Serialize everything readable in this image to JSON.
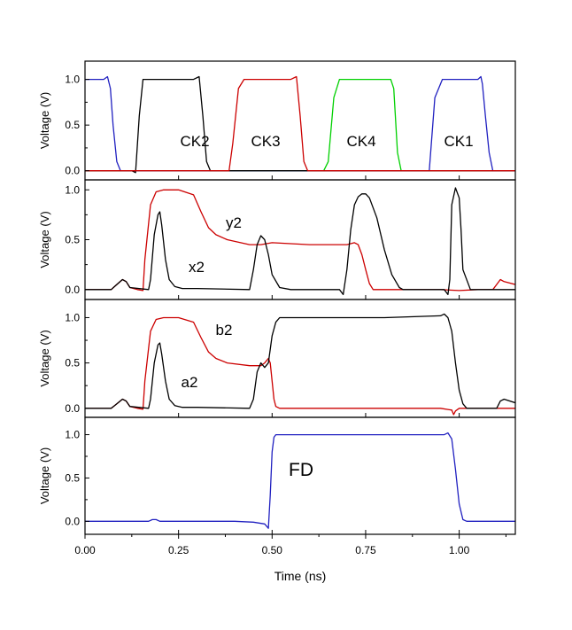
{
  "chart_data": {
    "type": "line",
    "xlabel": "Time (ns)",
    "x_ticks": [
      "0.00",
      "0.25",
      "0.50",
      "0.75",
      "1.00"
    ],
    "xlim": [
      0.0,
      1.15
    ],
    "grid": false,
    "panels": [
      {
        "ylabel": "Voltage (V)",
        "ylim": [
          -0.1,
          1.2
        ],
        "y_ticks": [
          "0.0",
          "0.5",
          "1.0"
        ],
        "annotations": [
          "CK2",
          "CK3",
          "CK4",
          "CK1"
        ],
        "series": [
          {
            "color": "#00d000",
            "x": [
              0.0,
              0.638,
              0.65,
              0.665,
              0.68,
              0.817,
              0.825,
              0.835,
              0.845,
              1.15
            ],
            "y": [
              0.0,
              0.0,
              0.1,
              0.8,
              1.0,
              1.0,
              0.9,
              0.2,
              0.0,
              0.0
            ]
          },
          {
            "color": "#2020c0",
            "x": [
              0.0,
              0.05,
              0.06,
              0.068,
              0.075,
              0.085,
              0.095,
              0.92,
              0.935,
              0.955,
              1.05,
              1.058,
              1.062,
              1.07,
              1.08,
              1.09,
              1.15
            ],
            "y": [
              1.0,
              1.0,
              1.03,
              0.9,
              0.5,
              0.1,
              0.0,
              0.0,
              0.8,
              1.0,
              1.0,
              1.03,
              0.95,
              0.6,
              0.2,
              0.0,
              0.0
            ]
          },
          {
            "color": "#000000",
            "x": [
              0.0,
              0.125,
              0.135,
              0.145,
              0.155,
              0.29,
              0.305,
              0.315,
              0.325,
              0.335,
              1.15
            ],
            "y": [
              0.0,
              0.0,
              -0.02,
              0.6,
              1.0,
              1.0,
              1.03,
              0.6,
              0.1,
              0.0,
              0.0
            ]
          },
          {
            "color": "#cc0000",
            "x": [
              0.0,
              0.385,
              0.395,
              0.41,
              0.425,
              0.55,
              0.565,
              0.575,
              0.585,
              0.595,
              1.15
            ],
            "y": [
              0.0,
              0.0,
              0.3,
              0.9,
              1.0,
              1.0,
              1.03,
              0.6,
              0.1,
              0.0,
              0.0
            ]
          }
        ]
      },
      {
        "ylabel": "Voltage (V)",
        "ylim": [
          -0.1,
          1.1
        ],
        "y_ticks": [
          "0.0",
          "0.5",
          "1.0"
        ],
        "annotations": [
          "y2",
          "x2"
        ],
        "series": [
          {
            "name": "y2",
            "color": "#cc0000",
            "x": [
              0.0,
              0.07,
              0.085,
              0.1,
              0.11,
              0.12,
              0.14,
              0.155,
              0.16,
              0.175,
              0.19,
              0.21,
              0.25,
              0.29,
              0.31,
              0.33,
              0.35,
              0.38,
              0.44,
              0.47,
              0.5,
              0.55,
              0.6,
              0.65,
              0.7,
              0.72,
              0.73,
              0.74,
              0.75,
              0.76,
              0.77,
              0.8,
              0.9,
              0.95,
              1.0,
              1.05,
              1.09,
              1.1,
              1.11,
              1.12,
              1.15
            ],
            "y": [
              0.0,
              0.0,
              0.05,
              0.1,
              0.08,
              0.02,
              0.0,
              -0.01,
              0.3,
              0.85,
              0.98,
              1.0,
              1.0,
              0.95,
              0.78,
              0.62,
              0.55,
              0.5,
              0.45,
              0.45,
              0.47,
              0.46,
              0.45,
              0.45,
              0.45,
              0.47,
              0.45,
              0.35,
              0.2,
              0.06,
              0.0,
              0.0,
              0.0,
              0.0,
              -0.01,
              0.0,
              0.0,
              0.05,
              0.1,
              0.08,
              0.05
            ]
          },
          {
            "name": "x2",
            "color": "#000000",
            "x": [
              0.0,
              0.07,
              0.085,
              0.1,
              0.11,
              0.12,
              0.17,
              0.175,
              0.185,
              0.195,
              0.2,
              0.205,
              0.215,
              0.225,
              0.24,
              0.26,
              0.3,
              0.44,
              0.45,
              0.46,
              0.47,
              0.48,
              0.49,
              0.5,
              0.52,
              0.55,
              0.68,
              0.69,
              0.7,
              0.71,
              0.72,
              0.73,
              0.74,
              0.75,
              0.76,
              0.78,
              0.8,
              0.82,
              0.84,
              0.85,
              0.96,
              0.97,
              0.975,
              0.98,
              0.99,
              1.0,
              1.005,
              1.01,
              1.03,
              1.15
            ],
            "y": [
              0.0,
              0.0,
              0.05,
              0.1,
              0.08,
              0.02,
              0.0,
              0.1,
              0.55,
              0.75,
              0.78,
              0.65,
              0.3,
              0.1,
              0.03,
              0.01,
              0.01,
              0.0,
              0.2,
              0.45,
              0.54,
              0.5,
              0.35,
              0.15,
              0.02,
              0.0,
              0.0,
              -0.05,
              0.2,
              0.6,
              0.85,
              0.93,
              0.96,
              0.96,
              0.92,
              0.72,
              0.4,
              0.15,
              0.02,
              0.0,
              0.0,
              -0.05,
              0.1,
              0.85,
              1.02,
              0.92,
              0.6,
              0.2,
              0.0,
              0.0
            ]
          }
        ]
      },
      {
        "ylabel": "Voltage (V)",
        "ylim": [
          -0.1,
          1.2
        ],
        "y_ticks": [
          "0.0",
          "0.5",
          "1.0"
        ],
        "annotations": [
          "b2",
          "a2"
        ],
        "series": [
          {
            "name": "b2",
            "color": "#cc0000",
            "x": [
              0.0,
              0.07,
              0.085,
              0.1,
              0.11,
              0.12,
              0.14,
              0.155,
              0.16,
              0.175,
              0.19,
              0.21,
              0.25,
              0.29,
              0.31,
              0.33,
              0.35,
              0.38,
              0.44,
              0.47,
              0.48,
              0.49,
              0.495,
              0.5,
              0.505,
              0.51,
              0.52,
              0.55,
              0.6,
              0.8,
              0.95,
              0.98,
              0.985,
              0.99,
              1.0,
              1.15
            ],
            "y": [
              0.0,
              0.0,
              0.05,
              0.1,
              0.08,
              0.02,
              0.0,
              -0.01,
              0.3,
              0.85,
              0.98,
              1.0,
              1.0,
              0.95,
              0.78,
              0.62,
              0.55,
              0.5,
              0.47,
              0.47,
              0.5,
              0.55,
              0.5,
              0.3,
              0.1,
              0.02,
              0.0,
              0.0,
              0.0,
              0.0,
              0.0,
              -0.02,
              -0.07,
              -0.03,
              0.0,
              0.0
            ]
          },
          {
            "name": "a2",
            "color": "#000000",
            "x": [
              0.0,
              0.07,
              0.085,
              0.1,
              0.11,
              0.12,
              0.17,
              0.175,
              0.185,
              0.195,
              0.2,
              0.205,
              0.215,
              0.225,
              0.24,
              0.26,
              0.3,
              0.44,
              0.45,
              0.46,
              0.47,
              0.48,
              0.49,
              0.5,
              0.51,
              0.52,
              0.53,
              0.55,
              0.6,
              0.8,
              0.95,
              0.96,
              0.97,
              0.98,
              0.99,
              1.0,
              1.01,
              1.02,
              1.03,
              1.05,
              1.1,
              1.11,
              1.12,
              1.15
            ],
            "y": [
              0.0,
              0.0,
              0.05,
              0.1,
              0.08,
              0.02,
              0.0,
              0.1,
              0.5,
              0.7,
              0.72,
              0.6,
              0.3,
              0.1,
              0.03,
              0.01,
              0.01,
              0.0,
              0.1,
              0.4,
              0.5,
              0.45,
              0.5,
              0.8,
              0.95,
              1.0,
              1.0,
              1.0,
              1.0,
              1.0,
              1.02,
              1.04,
              1.0,
              0.85,
              0.5,
              0.2,
              0.05,
              0.0,
              0.0,
              0.0,
              0.0,
              0.08,
              0.1,
              0.06
            ]
          }
        ]
      },
      {
        "ylabel": "Voltage (V)",
        "ylim": [
          -0.15,
          1.2
        ],
        "y_ticks": [
          "0.0",
          "0.5",
          "1.0"
        ],
        "annotations": [
          "FD"
        ],
        "series": [
          {
            "name": "FD",
            "color": "#2020c0",
            "x": [
              0.0,
              0.17,
              0.18,
              0.19,
              0.2,
              0.4,
              0.45,
              0.48,
              0.49,
              0.495,
              0.5,
              0.505,
              0.51,
              0.52,
              0.6,
              0.9,
              0.96,
              0.97,
              0.98,
              0.99,
              1.0,
              1.01,
              1.02,
              1.15
            ],
            "y": [
              0.0,
              0.0,
              0.02,
              0.02,
              0.0,
              0.0,
              -0.01,
              -0.03,
              -0.08,
              0.3,
              0.8,
              0.97,
              1.0,
              1.0,
              1.0,
              1.0,
              1.0,
              1.02,
              0.95,
              0.6,
              0.2,
              0.02,
              0.0,
              0.0
            ]
          }
        ]
      }
    ]
  }
}
